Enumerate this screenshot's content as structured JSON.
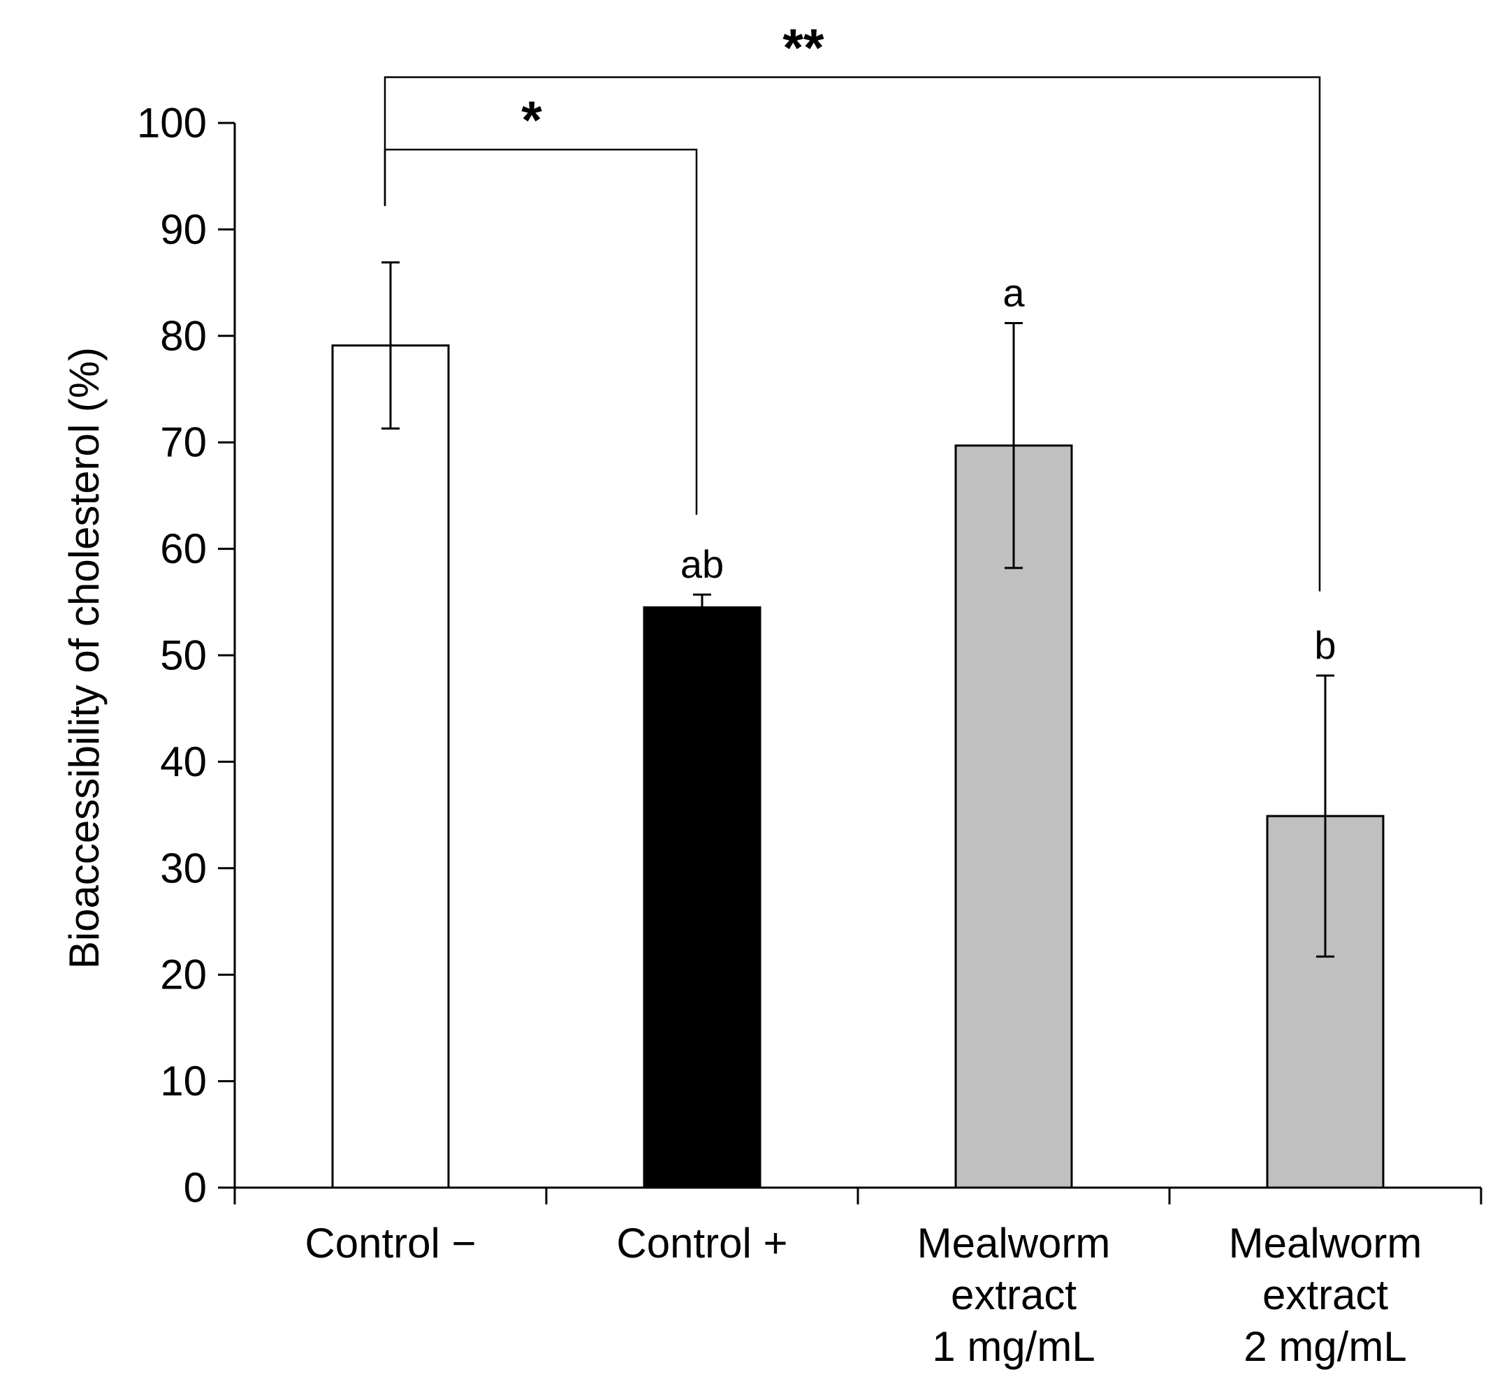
{
  "chart_data": {
    "type": "bar",
    "title": "",
    "xlabel": "",
    "ylabel": "Bioaccessibility of cholesterol (%)",
    "ylim": [
      0,
      100
    ],
    "yticks": [
      0,
      10,
      20,
      30,
      40,
      50,
      60,
      70,
      80,
      90,
      100
    ],
    "categories": [
      [
        "Control −"
      ],
      [
        "Control +"
      ],
      [
        "Mealworm",
        "extract",
        "1 mg/mL"
      ],
      [
        "Mealworm",
        "extract",
        "2 mg/mL"
      ]
    ],
    "values": [
      79.1,
      54.5,
      69.7,
      34.9
    ],
    "errors": [
      7.8,
      1.2,
      11.5,
      13.2
    ],
    "bar_colors": [
      "#ffffff",
      "#000000",
      "#c0c0c0",
      "#c0c0c0"
    ],
    "letters": [
      "",
      "ab",
      "a",
      "b"
    ],
    "significance": [
      {
        "from": 0,
        "to": 1,
        "label": "*",
        "level": 97.5,
        "from_bottom": 92.2,
        "to_bottom": 63.2
      },
      {
        "from": 0,
        "to": 3,
        "label": "**",
        "level": 104.3,
        "from_bottom": 92.2,
        "to_bottom": 56.0
      }
    ]
  }
}
